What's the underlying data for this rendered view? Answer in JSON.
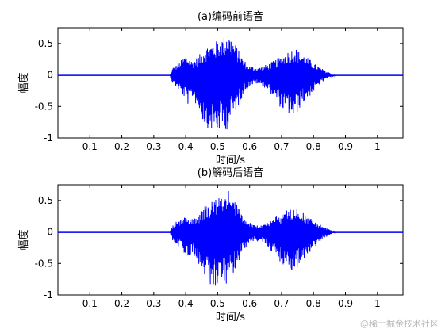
{
  "chart_data": [
    {
      "type": "line",
      "title": "(a)编码前语音",
      "xlabel": "时间/s",
      "ylabel": "幅度",
      "xlim": [
        0,
        1.08
      ],
      "ylim": [
        -1,
        0.75
      ],
      "xticks": [
        0.1,
        0.2,
        0.3,
        0.4,
        0.5,
        0.6,
        0.7,
        0.8,
        0.9,
        1
      ],
      "xtick_labels": [
        "0.1",
        "0.2",
        "0.3",
        "0.4",
        "0.5",
        "0.6",
        "0.7",
        "0.8",
        "0.9",
        "1"
      ],
      "yticks": [
        -1,
        -0.5,
        0,
        0.5
      ],
      "ytick_labels": [
        "-1",
        "-0.5",
        "0",
        "0.5"
      ],
      "grid": false,
      "series_color": "#0000ff",
      "series": [
        {
          "envelope_t": [
            0.0,
            0.35,
            0.36,
            0.38,
            0.4,
            0.41,
            0.42,
            0.44,
            0.46,
            0.48,
            0.5,
            0.52,
            0.53,
            0.54,
            0.56,
            0.58,
            0.6,
            0.62,
            0.64,
            0.66,
            0.68,
            0.7,
            0.72,
            0.74,
            0.76,
            0.78,
            0.8,
            0.82,
            0.84,
            0.86,
            0.87,
            1.08
          ],
          "envelope_pos": [
            0.0,
            0.0,
            0.12,
            0.2,
            0.32,
            0.28,
            0.22,
            0.3,
            0.45,
            0.5,
            0.55,
            0.62,
            0.7,
            0.62,
            0.45,
            0.25,
            0.15,
            0.12,
            0.14,
            0.18,
            0.24,
            0.3,
            0.38,
            0.45,
            0.36,
            0.28,
            0.2,
            0.12,
            0.06,
            0.02,
            0.0,
            0.0
          ],
          "envelope_neg": [
            0.0,
            0.0,
            -0.15,
            -0.25,
            -0.4,
            -0.5,
            -0.35,
            -0.55,
            -0.82,
            -0.88,
            -0.92,
            -0.85,
            -0.88,
            -0.75,
            -0.55,
            -0.3,
            -0.18,
            -0.14,
            -0.18,
            -0.26,
            -0.38,
            -0.55,
            -0.62,
            -0.7,
            -0.5,
            -0.38,
            -0.28,
            -0.15,
            -0.08,
            -0.03,
            0.0,
            0.0
          ]
        }
      ]
    },
    {
      "type": "line",
      "title": "(b)解码后语音",
      "xlabel": "时间/s",
      "ylabel": "幅度",
      "xlim": [
        0,
        1.08
      ],
      "ylim": [
        -1,
        0.75
      ],
      "xticks": [
        0.1,
        0.2,
        0.3,
        0.4,
        0.5,
        0.6,
        0.7,
        0.8,
        0.9,
        1
      ],
      "xtick_labels": [
        "0.1",
        "0.2",
        "0.3",
        "0.4",
        "0.5",
        "0.6",
        "0.7",
        "0.8",
        "0.9",
        "1"
      ],
      "yticks": [
        -1,
        -0.5,
        0,
        0.5
      ],
      "ytick_labels": [
        "-1",
        "-0.5",
        "0",
        "0.5"
      ],
      "grid": false,
      "series_color": "#0000ff",
      "series": [
        {
          "envelope_t": [
            0.0,
            0.35,
            0.36,
            0.38,
            0.4,
            0.41,
            0.42,
            0.44,
            0.46,
            0.48,
            0.5,
            0.52,
            0.53,
            0.54,
            0.56,
            0.58,
            0.6,
            0.62,
            0.64,
            0.66,
            0.68,
            0.7,
            0.72,
            0.74,
            0.76,
            0.78,
            0.8,
            0.82,
            0.84,
            0.86,
            0.87,
            1.08
          ],
          "envelope_pos": [
            0.0,
            0.0,
            0.12,
            0.2,
            0.3,
            0.26,
            0.22,
            0.28,
            0.42,
            0.5,
            0.55,
            0.62,
            0.7,
            0.6,
            0.45,
            0.25,
            0.15,
            0.12,
            0.14,
            0.18,
            0.24,
            0.3,
            0.38,
            0.42,
            0.34,
            0.26,
            0.18,
            0.12,
            0.06,
            0.02,
            0.0,
            0.0
          ],
          "envelope_neg": [
            0.0,
            0.0,
            -0.15,
            -0.25,
            -0.38,
            -0.48,
            -0.35,
            -0.52,
            -0.8,
            -0.86,
            -0.9,
            -0.84,
            -0.86,
            -0.74,
            -0.55,
            -0.3,
            -0.18,
            -0.14,
            -0.18,
            -0.26,
            -0.38,
            -0.55,
            -0.6,
            -0.68,
            -0.5,
            -0.38,
            -0.26,
            -0.15,
            -0.08,
            -0.03,
            0.0,
            0.0
          ]
        }
      ]
    }
  ],
  "watermark": "@稀土掘金技术社区"
}
